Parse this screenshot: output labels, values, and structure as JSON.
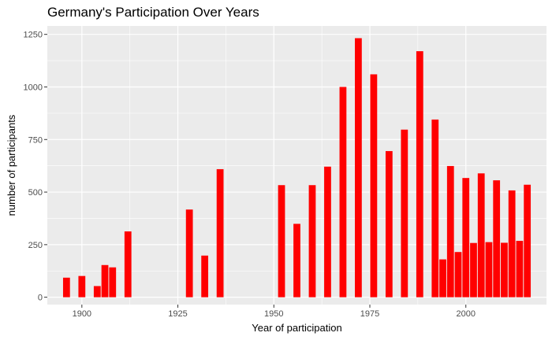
{
  "chart_data": {
    "type": "bar",
    "title": "Germany's Participation Over Years",
    "xlabel": "Year of participation",
    "ylabel": "number of participants",
    "xlim": [
      1891,
      2021
    ],
    "ylim": [
      -35,
      1290
    ],
    "x_ticks": [
      1900,
      1925,
      1950,
      1975,
      2000
    ],
    "y_ticks": [
      0,
      250,
      500,
      750,
      1000,
      1250
    ],
    "grid": true,
    "legend": "none",
    "bar_color": "#ff0000",
    "panel_color": "#ebebeb",
    "x": [
      1896,
      1900,
      1904,
      1906,
      1908,
      1912,
      1928,
      1932,
      1936,
      1952,
      1956,
      1960,
      1964,
      1968,
      1972,
      1976,
      1980,
      1984,
      1988,
      1992,
      1994,
      1996,
      1998,
      2000,
      2002,
      2004,
      2006,
      2008,
      2010,
      2012,
      2014,
      2016
    ],
    "values": [
      93,
      101,
      53,
      153,
      142,
      313,
      417,
      198,
      609,
      533,
      349,
      533,
      621,
      1000,
      1232,
      1060,
      695,
      797,
      1170,
      845,
      180,
      624,
      215,
      567,
      258,
      589,
      262,
      556,
      259,
      508,
      268,
      535
    ]
  }
}
